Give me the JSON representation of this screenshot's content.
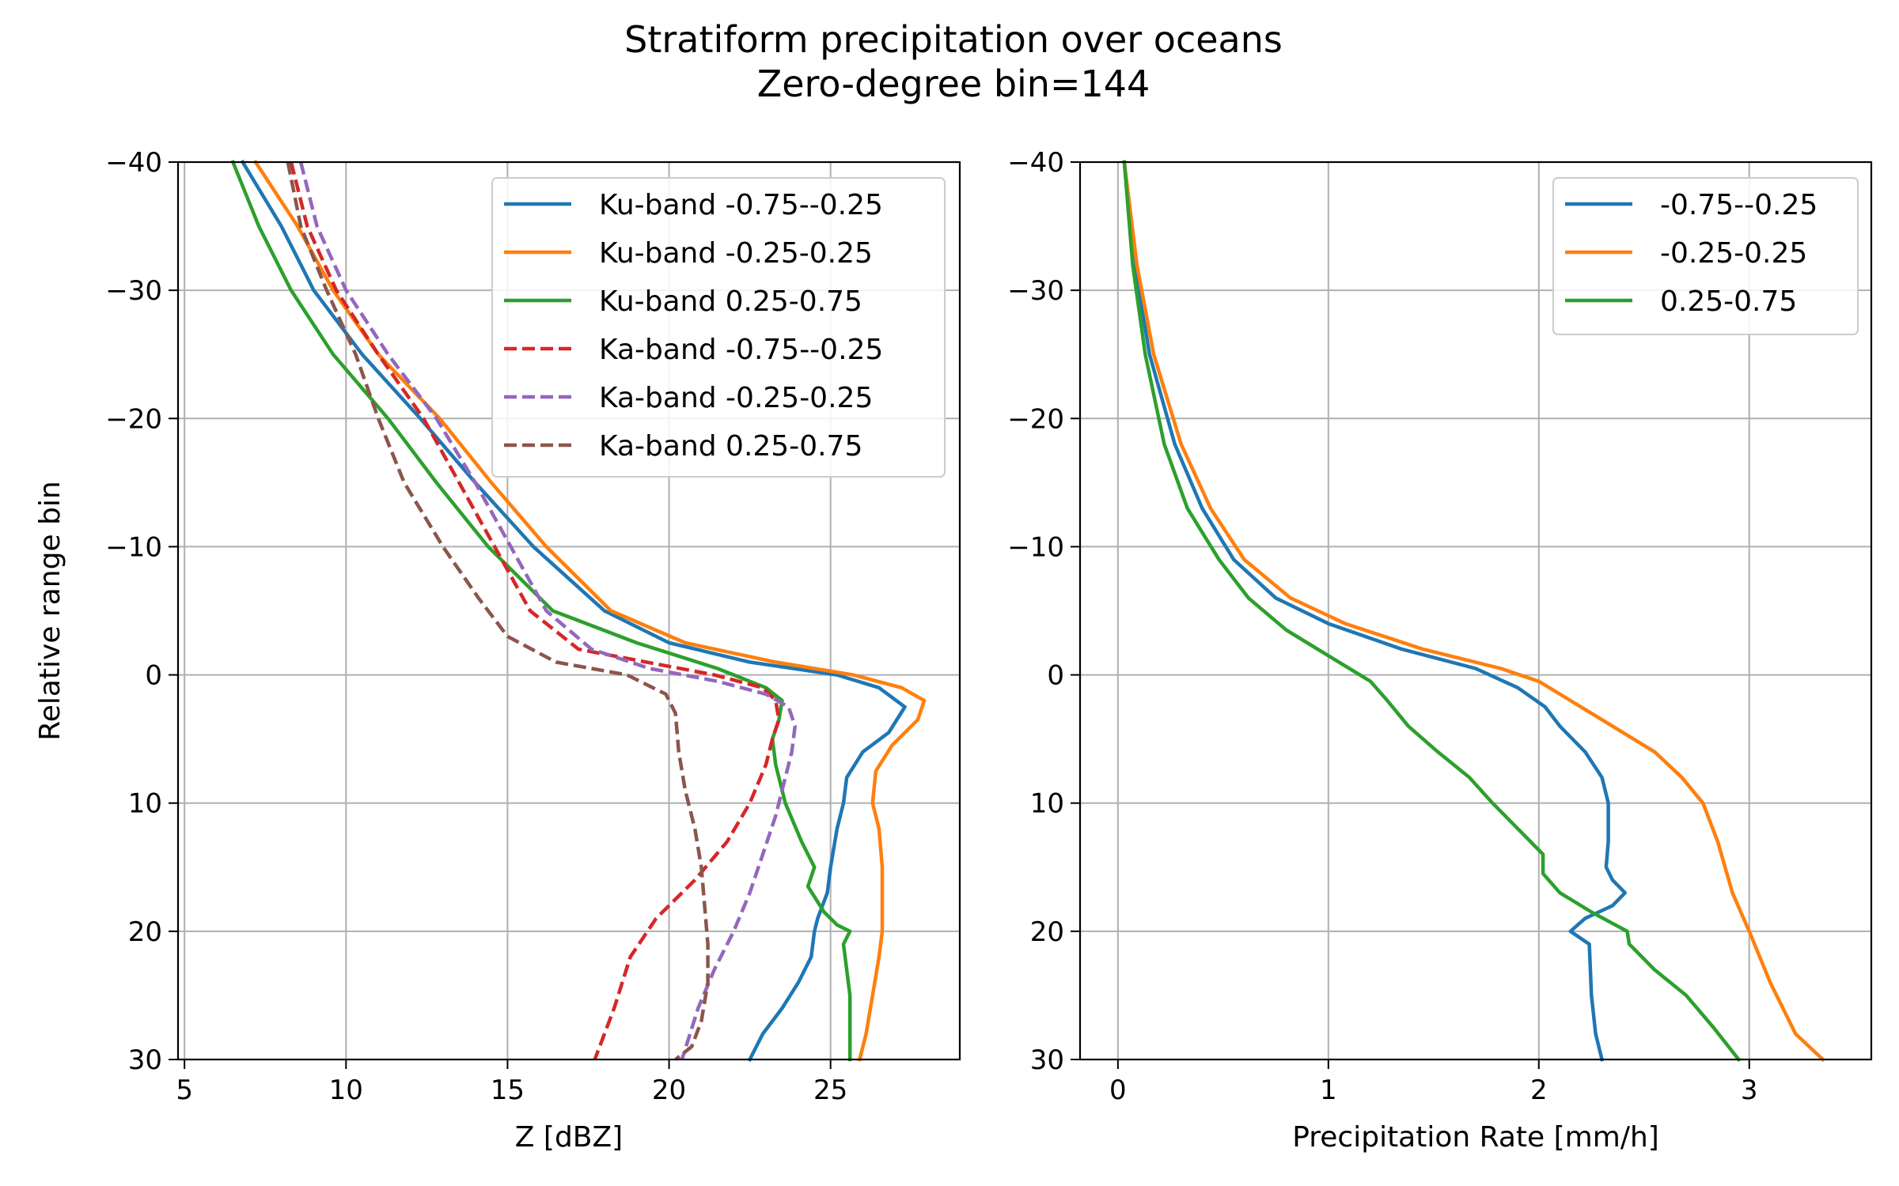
{
  "figure": {
    "title": "Stratiform precipitation over oceans",
    "subtitle": "Zero-degree bin=144"
  },
  "colors": {
    "blue": "#1f77b4",
    "orange": "#ff7f0e",
    "green": "#2ca02c",
    "red": "#d62728",
    "purple": "#9467bd",
    "brown": "#8c564b"
  },
  "chart_data": [
    {
      "type": "line",
      "xlabel": "Z [dBZ]",
      "ylabel": "Relative range bin",
      "xlim": [
        4.8,
        29
      ],
      "ylim": [
        30,
        -40
      ],
      "y_inverted": true,
      "xticks": [
        5,
        10,
        15,
        20,
        25
      ],
      "yticks": [
        -40,
        -30,
        -20,
        -10,
        0,
        10,
        20,
        30
      ],
      "grid": true,
      "legend_location": "upper-right",
      "series": [
        {
          "name": "Ku-band -0.75--0.25",
          "color": "#1f77b4",
          "dashed": false,
          "points": [
            [
              6.8,
              -40
            ],
            [
              8.0,
              -35
            ],
            [
              9.0,
              -30
            ],
            [
              10.5,
              -25
            ],
            [
              12.3,
              -20
            ],
            [
              14.0,
              -15
            ],
            [
              15.8,
              -10
            ],
            [
              18.0,
              -5
            ],
            [
              20.0,
              -2.5
            ],
            [
              22.5,
              -1
            ],
            [
              25.2,
              0
            ],
            [
              26.5,
              1
            ],
            [
              27.3,
              2.5
            ],
            [
              26.8,
              4.5
            ],
            [
              26.0,
              6
            ],
            [
              25.5,
              8
            ],
            [
              25.4,
              10
            ],
            [
              25.2,
              12
            ],
            [
              25.0,
              15
            ],
            [
              24.9,
              17
            ],
            [
              24.6,
              19
            ],
            [
              24.5,
              20
            ],
            [
              24.4,
              22
            ],
            [
              24.0,
              24
            ],
            [
              23.5,
              26
            ],
            [
              22.9,
              28
            ],
            [
              22.5,
              30
            ]
          ]
        },
        {
          "name": "Ku-band -0.25-0.25",
          "color": "#ff7f0e",
          "dashed": false,
          "points": [
            [
              7.2,
              -40
            ],
            [
              8.5,
              -35
            ],
            [
              9.6,
              -30
            ],
            [
              11.0,
              -25
            ],
            [
              12.9,
              -20
            ],
            [
              14.5,
              -15
            ],
            [
              16.2,
              -10
            ],
            [
              18.2,
              -5
            ],
            [
              20.5,
              -2.5
            ],
            [
              23.3,
              -1
            ],
            [
              25.7,
              0
            ],
            [
              27.2,
              1
            ],
            [
              27.9,
              2
            ],
            [
              27.7,
              3.5
            ],
            [
              26.9,
              5.5
            ],
            [
              26.4,
              7.5
            ],
            [
              26.3,
              10
            ],
            [
              26.5,
              12
            ],
            [
              26.6,
              15
            ],
            [
              26.6,
              20
            ],
            [
              26.5,
              22
            ],
            [
              26.3,
              25
            ],
            [
              26.1,
              28
            ],
            [
              25.9,
              30
            ]
          ]
        },
        {
          "name": "Ku-band 0.25-0.75",
          "color": "#2ca02c",
          "dashed": false,
          "points": [
            [
              6.5,
              -40
            ],
            [
              7.3,
              -35
            ],
            [
              8.3,
              -30
            ],
            [
              9.6,
              -25
            ],
            [
              11.3,
              -20
            ],
            [
              12.8,
              -15
            ],
            [
              14.4,
              -10
            ],
            [
              16.4,
              -5
            ],
            [
              19.0,
              -2.5
            ],
            [
              21.5,
              -0.5
            ],
            [
              23.0,
              1
            ],
            [
              23.5,
              2
            ],
            [
              23.4,
              3.5
            ],
            [
              23.2,
              5
            ],
            [
              23.3,
              7
            ],
            [
              23.6,
              10
            ],
            [
              24.1,
              13
            ],
            [
              24.5,
              15
            ],
            [
              24.3,
              16.5
            ],
            [
              24.8,
              18.5
            ],
            [
              25.2,
              19.5
            ],
            [
              25.6,
              20
            ],
            [
              25.4,
              21
            ],
            [
              25.6,
              25
            ],
            [
              25.6,
              30
            ]
          ]
        },
        {
          "name": "Ka-band -0.75--0.25",
          "color": "#d62728",
          "dashed": true,
          "points": [
            [
              8.3,
              -40
            ],
            [
              8.8,
              -35
            ],
            [
              9.7,
              -30
            ],
            [
              11.0,
              -25
            ],
            [
              12.4,
              -20
            ],
            [
              13.5,
              -15
            ],
            [
              14.6,
              -10
            ],
            [
              15.7,
              -5
            ],
            [
              17.2,
              -2
            ],
            [
              19.3,
              -1
            ],
            [
              21.4,
              0
            ],
            [
              22.9,
              1
            ],
            [
              23.3,
              2
            ],
            [
              23.4,
              3.5
            ],
            [
              23.2,
              5
            ],
            [
              23.0,
              7
            ],
            [
              22.5,
              10
            ],
            [
              21.8,
              13
            ],
            [
              20.8,
              16
            ],
            [
              19.6,
              19
            ],
            [
              18.8,
              22
            ],
            [
              18.3,
              26
            ],
            [
              17.7,
              30
            ]
          ]
        },
        {
          "name": "Ka-band -0.25-0.25",
          "color": "#9467bd",
          "dashed": true,
          "points": [
            [
              8.6,
              -40
            ],
            [
              9.1,
              -35
            ],
            [
              10.0,
              -30
            ],
            [
              11.3,
              -25
            ],
            [
              12.8,
              -20
            ],
            [
              14.0,
              -15
            ],
            [
              15.1,
              -10
            ],
            [
              16.2,
              -5
            ],
            [
              17.6,
              -2
            ],
            [
              19.4,
              -0.5
            ],
            [
              21.5,
              0.5
            ],
            [
              23.0,
              1.5
            ],
            [
              23.7,
              2.5
            ],
            [
              23.9,
              4
            ],
            [
              23.8,
              6
            ],
            [
              23.6,
              8
            ],
            [
              23.3,
              11
            ],
            [
              22.9,
              14
            ],
            [
              22.5,
              17
            ],
            [
              22.0,
              20
            ],
            [
              21.4,
              23
            ],
            [
              20.9,
              26
            ],
            [
              20.4,
              30
            ]
          ]
        },
        {
          "name": "Ka-band 0.25-0.75",
          "color": "#8c564b",
          "dashed": true,
          "points": [
            [
              8.2,
              -40
            ],
            [
              8.6,
              -35
            ],
            [
              9.4,
              -30
            ],
            [
              10.3,
              -25
            ],
            [
              11.0,
              -20
            ],
            [
              11.8,
              -15
            ],
            [
              13.0,
              -10
            ],
            [
              14.1,
              -6
            ],
            [
              15.0,
              -3
            ],
            [
              16.5,
              -1
            ],
            [
              18.7,
              0
            ],
            [
              19.9,
              1.5
            ],
            [
              20.2,
              3
            ],
            [
              20.3,
              6
            ],
            [
              20.5,
              9
            ],
            [
              20.8,
              12
            ],
            [
              21.0,
              15
            ],
            [
              21.1,
              18
            ],
            [
              21.2,
              21
            ],
            [
              21.2,
              24
            ],
            [
              21.0,
              27
            ],
            [
              20.7,
              29
            ],
            [
              20.2,
              30
            ]
          ]
        }
      ]
    },
    {
      "type": "line",
      "xlabel": "Precipitation Rate [mm/h]",
      "ylabel": "",
      "xlim": [
        -0.18,
        3.58
      ],
      "ylim": [
        30,
        -40
      ],
      "y_inverted": true,
      "xticks": [
        0,
        1,
        2,
        3
      ],
      "yticks": [
        -40,
        -30,
        -20,
        -10,
        0,
        10,
        20,
        30
      ],
      "grid": true,
      "legend_location": "upper-right",
      "series": [
        {
          "name": "-0.75--0.25",
          "color": "#1f77b4",
          "dashed": false,
          "points": [
            [
              0.03,
              -40
            ],
            [
              0.08,
              -32
            ],
            [
              0.15,
              -25
            ],
            [
              0.27,
              -18
            ],
            [
              0.4,
              -13
            ],
            [
              0.55,
              -9
            ],
            [
              0.75,
              -6
            ],
            [
              1.0,
              -4
            ],
            [
              1.35,
              -2
            ],
            [
              1.7,
              -0.5
            ],
            [
              1.9,
              1
            ],
            [
              2.03,
              2.5
            ],
            [
              2.1,
              4
            ],
            [
              2.22,
              6
            ],
            [
              2.3,
              8
            ],
            [
              2.33,
              10
            ],
            [
              2.33,
              13
            ],
            [
              2.32,
              15
            ],
            [
              2.35,
              16
            ],
            [
              2.41,
              17
            ],
            [
              2.35,
              18
            ],
            [
              2.22,
              19
            ],
            [
              2.15,
              20
            ],
            [
              2.24,
              21
            ],
            [
              2.25,
              25
            ],
            [
              2.27,
              28
            ],
            [
              2.3,
              30
            ]
          ]
        },
        {
          "name": "-0.25-0.25",
          "color": "#ff7f0e",
          "dashed": false,
          "points": [
            [
              0.03,
              -40
            ],
            [
              0.09,
              -32
            ],
            [
              0.17,
              -25
            ],
            [
              0.3,
              -18
            ],
            [
              0.44,
              -13
            ],
            [
              0.6,
              -9
            ],
            [
              0.82,
              -6
            ],
            [
              1.08,
              -4
            ],
            [
              1.45,
              -2
            ],
            [
              1.82,
              -0.5
            ],
            [
              2.0,
              0.5
            ],
            [
              2.15,
              2
            ],
            [
              2.25,
              3
            ],
            [
              2.35,
              4
            ],
            [
              2.55,
              6
            ],
            [
              2.68,
              8
            ],
            [
              2.78,
              10
            ],
            [
              2.85,
              13
            ],
            [
              2.92,
              17
            ],
            [
              3.0,
              20
            ],
            [
              3.1,
              24
            ],
            [
              3.22,
              28
            ],
            [
              3.35,
              30
            ]
          ]
        },
        {
          "name": "0.25-0.75",
          "color": "#2ca02c",
          "dashed": false,
          "points": [
            [
              0.03,
              -40
            ],
            [
              0.07,
              -32
            ],
            [
              0.13,
              -25
            ],
            [
              0.22,
              -18
            ],
            [
              0.33,
              -13
            ],
            [
              0.48,
              -9
            ],
            [
              0.62,
              -6
            ],
            [
              0.8,
              -3.5
            ],
            [
              1.0,
              -1.5
            ],
            [
              1.2,
              0.5
            ],
            [
              1.28,
              2
            ],
            [
              1.38,
              4
            ],
            [
              1.52,
              6
            ],
            [
              1.67,
              8
            ],
            [
              1.78,
              10
            ],
            [
              1.9,
              12
            ],
            [
              2.02,
              14
            ],
            [
              2.02,
              15.5
            ],
            [
              2.1,
              17
            ],
            [
              2.25,
              18.5
            ],
            [
              2.42,
              20
            ],
            [
              2.43,
              21
            ],
            [
              2.55,
              23
            ],
            [
              2.7,
              25
            ],
            [
              2.83,
              27.5
            ],
            [
              2.95,
              30
            ]
          ]
        }
      ]
    }
  ]
}
